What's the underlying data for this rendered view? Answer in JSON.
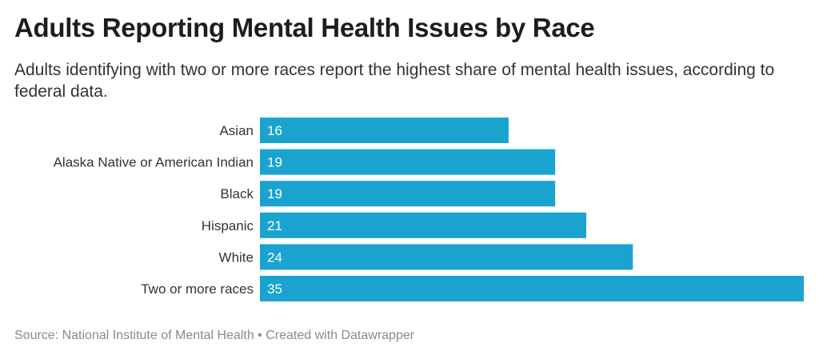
{
  "title": "Adults Reporting Mental Health Issues by Race",
  "subtitle": "Adults identifying with two or more races report the highest share of mental health issues, according to federal data.",
  "source": "Source: National Institute of Mental Health • Created with Datawrapper",
  "chart_data": {
    "type": "bar",
    "orientation": "horizontal",
    "categories": [
      "Asian",
      "Alaska Native or American Indian",
      "Black",
      "Hispanic",
      "White",
      "Two or more races"
    ],
    "values": [
      16,
      19,
      19,
      21,
      24,
      35
    ],
    "title": "Adults Reporting Mental Health Issues by Race",
    "xlabel": "",
    "ylabel": "",
    "xlim": [
      0,
      35
    ],
    "grid": false,
    "bar_color": "#1aa3cf",
    "data_labels": "inside-left"
  }
}
